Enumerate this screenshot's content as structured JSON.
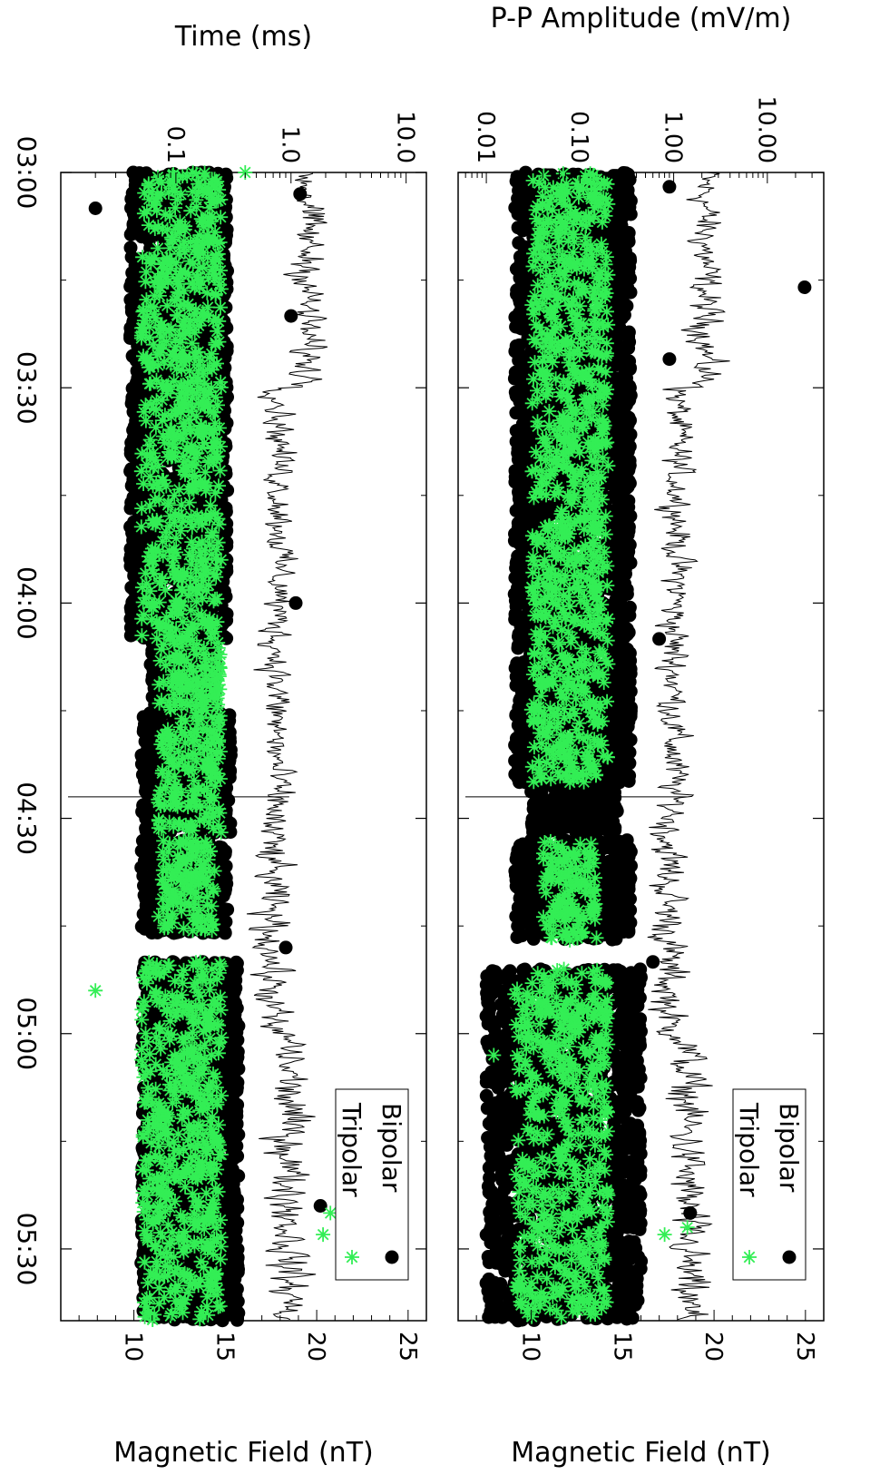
{
  "chart_data": [
    {
      "type": "scatter",
      "panel": "top",
      "ylabel_left": "P-P Amplitude (mV/m)",
      "ylabel_right": "Magnetic Field (nT)",
      "xlabel": "",
      "x_ticks": [
        "03:00",
        "03:30",
        "04:00",
        "04:30",
        "05:00",
        "05:30"
      ],
      "x_range_minutes": [
        0,
        160
      ],
      "left_axis": {
        "scale": "log",
        "range": [
          0.005,
          40
        ],
        "ticks": [
          0.01,
          0.1,
          1.0,
          10.0
        ],
        "tick_labels": [
          "0.01",
          "0.10",
          "1.00",
          "10.00"
        ]
      },
      "right_axis": {
        "scale": "linear",
        "range": [
          6,
          26
        ],
        "ticks": [
          10,
          15,
          20,
          25
        ],
        "tick_labels": [
          "10",
          "15",
          "20",
          "25"
        ]
      },
      "legend": {
        "entries": [
          "Bipolar",
          "Tripolar"
        ],
        "placement": "bottom-right"
      },
      "series": [
        {
          "name": "Bipolar",
          "marker": "filled-circle",
          "color": "#000000",
          "clusters": [
            {
              "t_start": 0,
              "t_end": 85,
              "amp_low": 0.02,
              "amp_high": 0.35
            },
            {
              "t_start": 85,
              "t_end": 92,
              "amp_low": 0.03,
              "amp_high": 0.25
            },
            {
              "t_start": 93,
              "t_end": 107,
              "amp_low": 0.02,
              "amp_high": 0.35
            },
            {
              "t_start": 111,
              "t_end": 160,
              "amp_low": 0.01,
              "amp_high": 0.45
            }
          ],
          "outliers": [
            {
              "t": 16,
              "amp": 25
            },
            {
              "t": 2,
              "amp": 0.9
            },
            {
              "t": 26,
              "amp": 0.9
            },
            {
              "t": 65,
              "amp": 0.7
            },
            {
              "t": 110,
              "amp": 0.6
            },
            {
              "t": 145,
              "amp": 1.5
            }
          ]
        },
        {
          "name": "Tripolar",
          "marker": "asterisk",
          "color": "#33ee55",
          "clusters": [
            {
              "t_start": 0,
              "t_end": 85,
              "amp_low": 0.03,
              "amp_high": 0.2
            },
            {
              "t_start": 93,
              "t_end": 107,
              "amp_low": 0.04,
              "amp_high": 0.15
            },
            {
              "t_start": 111,
              "t_end": 160,
              "amp_low": 0.02,
              "amp_high": 0.2
            }
          ],
          "outliers": [
            {
              "t": 123,
              "amp": 0.012
            },
            {
              "t": 148,
              "amp": 0.8
            },
            {
              "t": 147,
              "amp": 1.4
            }
          ]
        }
      ],
      "magnetic_field": {
        "name": "Magnetic Field",
        "style": "line",
        "color": "#000000",
        "typical_range_nT": [
          14,
          21
        ],
        "segments": [
          {
            "t_start": 0,
            "t_end": 30,
            "center": 19.5,
            "spread": 1.5
          },
          {
            "t_start": 30,
            "t_end": 60,
            "center": 18,
            "spread": 1.3
          },
          {
            "t_start": 60,
            "t_end": 90,
            "center": 17.8,
            "spread": 1.4
          },
          {
            "t_start": 90,
            "t_end": 120,
            "center": 17.5,
            "spread": 1.6
          },
          {
            "t_start": 120,
            "t_end": 160,
            "center": 18.5,
            "spread": 1.8
          }
        ]
      }
    },
    {
      "type": "scatter",
      "panel": "bottom",
      "ylabel_left": "Time (ms)",
      "ylabel_right": "Magnetic Field (nT)",
      "xlabel": "",
      "x_ticks": [
        "03:00",
        "03:30",
        "04:00",
        "04:30",
        "05:00",
        "05:30"
      ],
      "x_range_minutes": [
        0,
        160
      ],
      "left_axis": {
        "scale": "log",
        "range": [
          0.01,
          15
        ],
        "ticks": [
          0.1,
          1.0,
          10.0
        ],
        "tick_labels": [
          "0.1",
          "1.0",
          "10.0"
        ]
      },
      "right_axis": {
        "scale": "linear",
        "range": [
          6,
          26
        ],
        "ticks": [
          10,
          15,
          20,
          25
        ],
        "tick_labels": [
          "10",
          "15",
          "20",
          "25"
        ]
      },
      "legend": {
        "entries": [
          "Bipolar",
          "Tripolar"
        ],
        "placement": "bottom-right"
      },
      "series": [
        {
          "name": "Bipolar",
          "marker": "filled-circle",
          "color": "#000000",
          "clusters": [
            {
              "t_start": 0,
              "t_end": 65,
              "dur_low": 0.04,
              "dur_high": 0.28
            },
            {
              "t_start": 65,
              "t_end": 75,
              "dur_low": 0.06,
              "dur_high": 0.22
            },
            {
              "t_start": 75,
              "t_end": 92,
              "dur_low": 0.05,
              "dur_high": 0.3
            },
            {
              "t_start": 93,
              "t_end": 106,
              "dur_low": 0.05,
              "dur_high": 0.28
            },
            {
              "t_start": 110,
              "t_end": 160,
              "dur_low": 0.05,
              "dur_high": 0.35
            }
          ],
          "outliers": [
            {
              "t": 5,
              "dur": 0.02
            },
            {
              "t": 3,
              "dur": 1.2
            },
            {
              "t": 20,
              "dur": 1.0
            },
            {
              "t": 60,
              "dur": 1.1
            },
            {
              "t": 108,
              "dur": 0.9
            },
            {
              "t": 144,
              "dur": 1.8
            }
          ]
        },
        {
          "name": "Tripolar",
          "marker": "asterisk",
          "color": "#33ee55",
          "clusters": [
            {
              "t_start": 0,
              "t_end": 65,
              "dur_low": 0.05,
              "dur_high": 0.25
            },
            {
              "t_start": 65,
              "t_end": 92,
              "dur_low": 0.07,
              "dur_high": 0.25
            },
            {
              "t_start": 93,
              "t_end": 106,
              "dur_low": 0.07,
              "dur_high": 0.22
            },
            {
              "t_start": 110,
              "t_end": 160,
              "dur_low": 0.05,
              "dur_high": 0.25
            }
          ],
          "outliers": [
            {
              "t": 114,
              "dur": 0.02
            },
            {
              "t": 145,
              "dur": 2.2
            },
            {
              "t": 148,
              "dur": 1.9
            },
            {
              "t": 0,
              "dur": 0.4
            }
          ]
        }
      ],
      "magnetic_field": {
        "name": "Magnetic Field",
        "style": "line",
        "color": "#000000",
        "typical_range_nT": [
          14,
          21
        ],
        "segments": [
          {
            "t_start": 0,
            "t_end": 30,
            "center": 19.5,
            "spread": 1.5
          },
          {
            "t_start": 30,
            "t_end": 60,
            "center": 18,
            "spread": 1.3
          },
          {
            "t_start": 60,
            "t_end": 90,
            "center": 17.8,
            "spread": 1.4
          },
          {
            "t_start": 90,
            "t_end": 120,
            "center": 17.5,
            "spread": 1.6
          },
          {
            "t_start": 120,
            "t_end": 160,
            "center": 18.5,
            "spread": 1.8
          }
        ]
      }
    }
  ]
}
